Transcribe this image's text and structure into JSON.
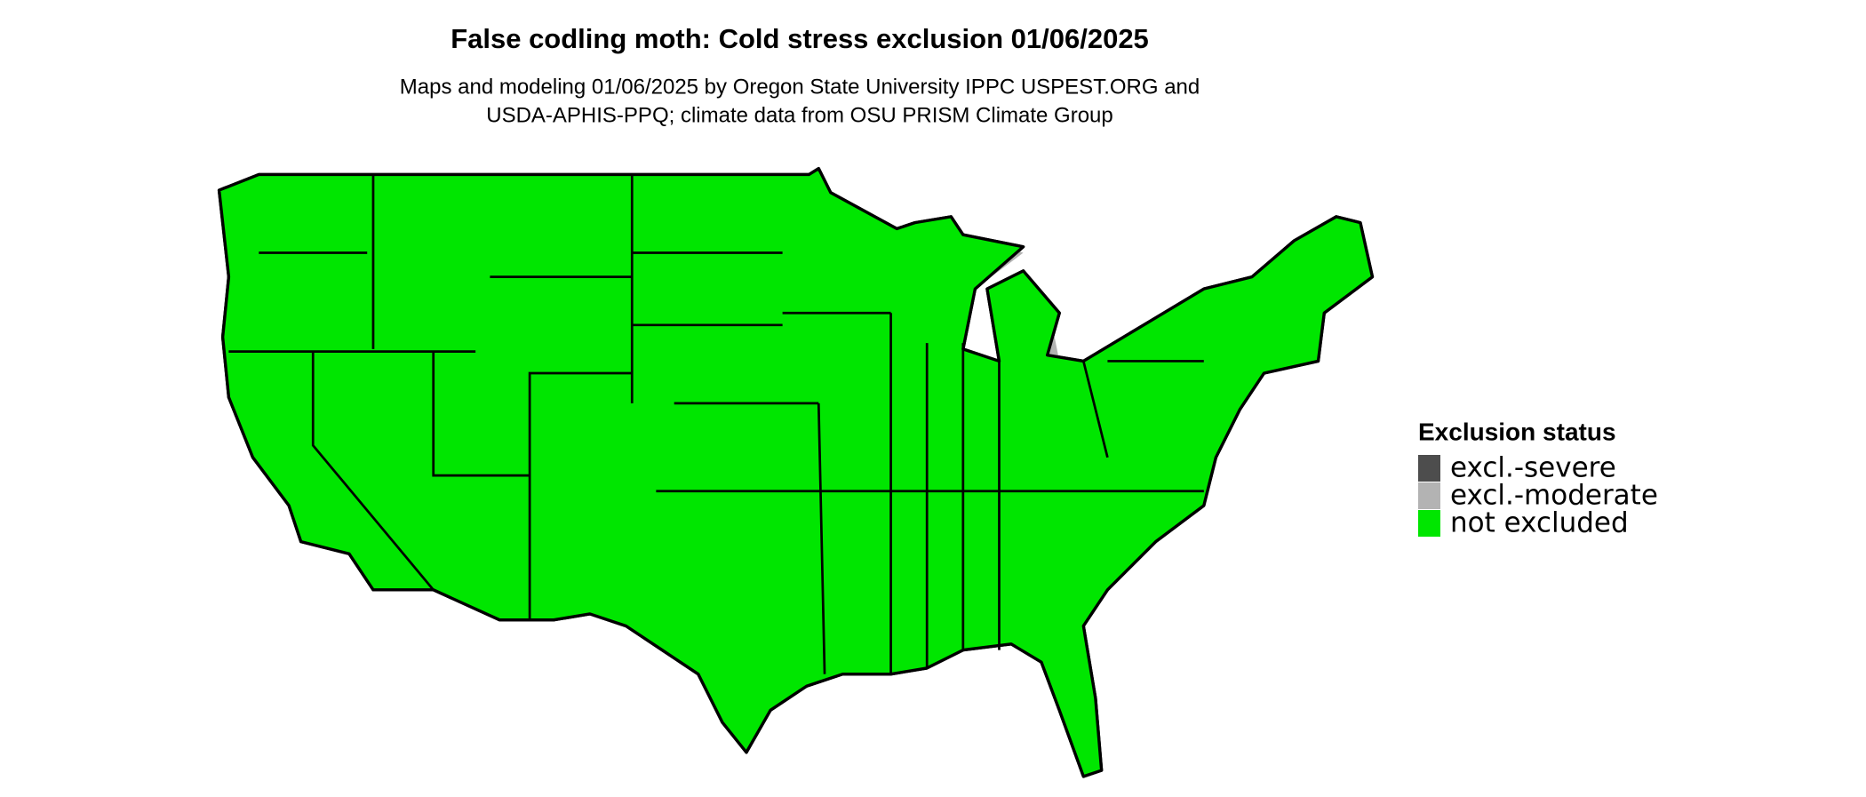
{
  "header": {
    "title": "False codling moth: Cold stress exclusion 01/06/2025",
    "subtitle": [
      "Maps and modeling 01/06/2025 by Oregon State University IPPC USPEST.ORG and",
      "USDA-APHIS-PPQ; climate data from OSU PRISM Climate Group"
    ]
  },
  "legend": {
    "title": "Exclusion status",
    "items": [
      {
        "name": "excl.-severe",
        "color": "#4d4d4d"
      },
      {
        "name": "excl.-moderate",
        "color": "#b3b3b3"
      },
      {
        "name": "not excluded",
        "color": "#00e600"
      }
    ]
  }
}
